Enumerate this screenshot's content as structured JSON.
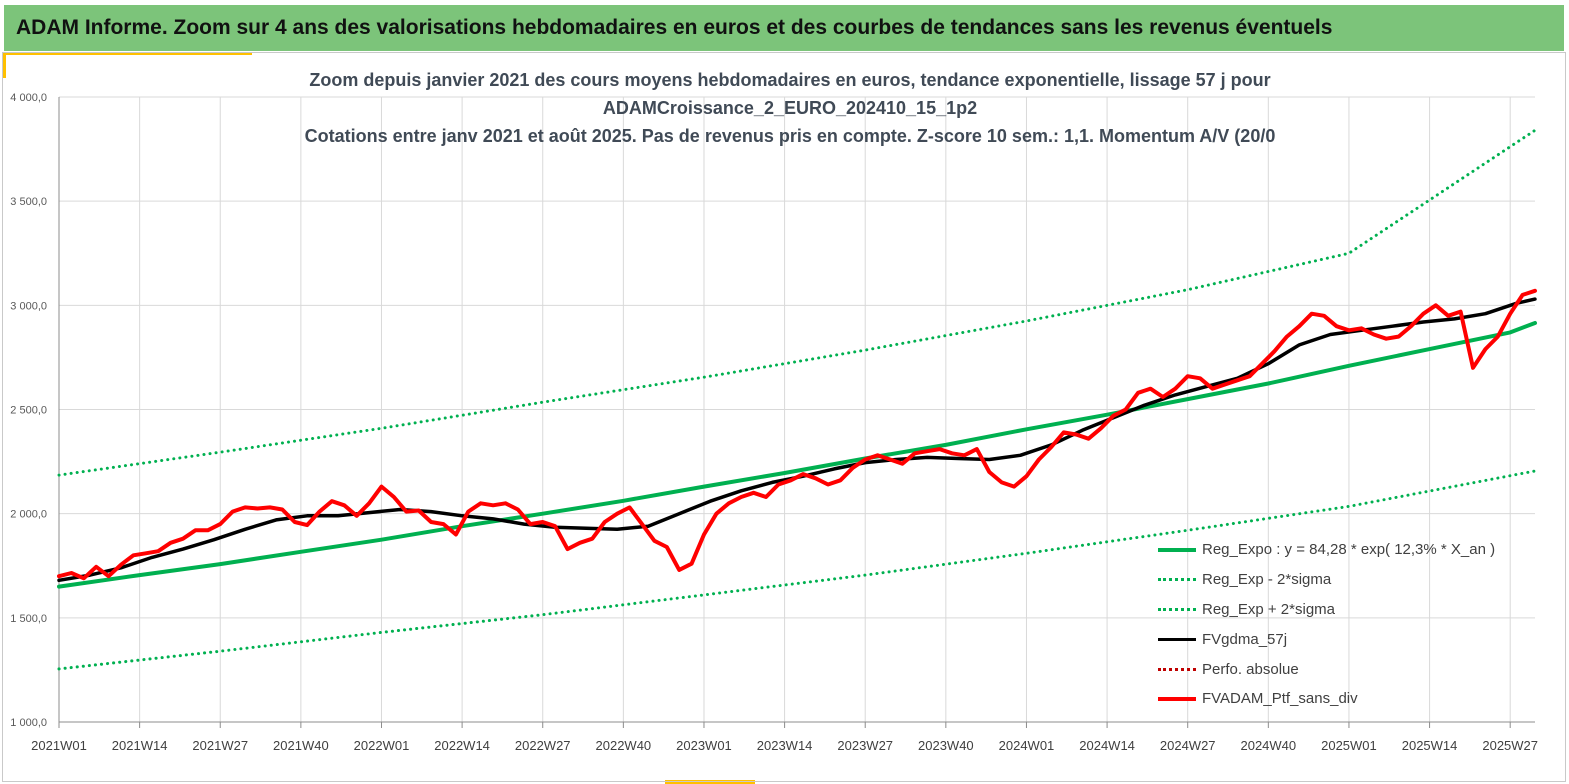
{
  "header": {
    "title": "ADAM Informe. Zoom sur 4 ans des valorisations hebdomadaires en euros et des courbes de tendances sans les revenus éventuels"
  },
  "chart_data": {
    "type": "line",
    "title_lines": [
      "Zoom depuis janvier 2021 des cours moyens hebdomadaires  en euros, tendance exponentielle, lissage 57 j pour",
      "ADAMCroissance_2_EURO_202410_15_1p2",
      "Cotations entre janv 2021 et août 2025. Pas de revenus pris en compte. Z-score 10 sem.: 1,1. Momentum A/V (20/0"
    ],
    "ylim": [
      1000,
      4000
    ],
    "yticks": [
      "1 000,0",
      "1 500,0",
      "2 000,0",
      "2 500,0",
      "3 000,0",
      "3 500,0",
      "4 000,0"
    ],
    "ytick_values": [
      1000,
      1500,
      2000,
      2500,
      3000,
      3500,
      4000
    ],
    "xticks": [
      "2021W01",
      "2021W14",
      "2021W27",
      "2021W40",
      "2022W01",
      "2022W14",
      "2022W27",
      "2022W40",
      "2023W01",
      "2023W14",
      "2023W27",
      "2023W40",
      "2024W01",
      "2024W14",
      "2024W27",
      "2024W40",
      "2025W01",
      "2025W14",
      "2025W27"
    ],
    "xtick_weeks": [
      0,
      13,
      26,
      39,
      52,
      65,
      78,
      91,
      104,
      117,
      130,
      143,
      156,
      169,
      182,
      195,
      208,
      221,
      234
    ],
    "week_count": 239,
    "grid": true,
    "legend_position": "bottom-right",
    "series": [
      {
        "name": "Reg_Expo : y = 84,28 * exp( 12,3% *  X_an )",
        "style": "solid-thick",
        "color": "#00b050",
        "points": [
          [
            0,
            1650
          ],
          [
            13,
            1705
          ],
          [
            26,
            1758
          ],
          [
            39,
            1817
          ],
          [
            52,
            1875
          ],
          [
            65,
            1940
          ],
          [
            78,
            2000
          ],
          [
            91,
            2062
          ],
          [
            104,
            2130
          ],
          [
            117,
            2195
          ],
          [
            130,
            2265
          ],
          [
            143,
            2330
          ],
          [
            156,
            2405
          ],
          [
            169,
            2475
          ],
          [
            182,
            2550
          ],
          [
            195,
            2625
          ],
          [
            208,
            2710
          ],
          [
            221,
            2790
          ],
          [
            234,
            2870
          ],
          [
            238,
            2915
          ]
        ]
      },
      {
        "name": "Reg_Exp - 2*sigma",
        "style": "dotted",
        "color": "#00b050",
        "points": [
          [
            0,
            1255
          ],
          [
            26,
            1340
          ],
          [
            52,
            1430
          ],
          [
            78,
            1515
          ],
          [
            104,
            1610
          ],
          [
            130,
            1705
          ],
          [
            156,
            1810
          ],
          [
            182,
            1920
          ],
          [
            208,
            2035
          ],
          [
            238,
            2205
          ]
        ]
      },
      {
        "name": "Reg_Exp + 2*sigma",
        "style": "dotted",
        "color": "#00b050",
        "points": [
          [
            0,
            2185
          ],
          [
            26,
            2295
          ],
          [
            52,
            2410
          ],
          [
            78,
            2535
          ],
          [
            104,
            2655
          ],
          [
            130,
            2785
          ],
          [
            156,
            2925
          ],
          [
            182,
            3075
          ],
          [
            208,
            3250
          ],
          [
            238,
            3840
          ]
        ]
      },
      {
        "name": "FVgdma_57j",
        "style": "solid",
        "color": "#000000",
        "points": [
          [
            0,
            1680
          ],
          [
            5,
            1705
          ],
          [
            10,
            1740
          ],
          [
            15,
            1790
          ],
          [
            20,
            1830
          ],
          [
            25,
            1875
          ],
          [
            30,
            1925
          ],
          [
            35,
            1970
          ],
          [
            40,
            1990
          ],
          [
            45,
            1990
          ],
          [
            50,
            2005
          ],
          [
            55,
            2020
          ],
          [
            60,
            2010
          ],
          [
            65,
            1990
          ],
          [
            70,
            1975
          ],
          [
            75,
            1950
          ],
          [
            80,
            1935
          ],
          [
            85,
            1930
          ],
          [
            90,
            1925
          ],
          [
            95,
            1940
          ],
          [
            100,
            2000
          ],
          [
            105,
            2060
          ],
          [
            110,
            2110
          ],
          [
            115,
            2150
          ],
          [
            120,
            2180
          ],
          [
            125,
            2215
          ],
          [
            130,
            2245
          ],
          [
            135,
            2260
          ],
          [
            140,
            2270
          ],
          [
            145,
            2265
          ],
          [
            150,
            2260
          ],
          [
            155,
            2280
          ],
          [
            160,
            2330
          ],
          [
            165,
            2400
          ],
          [
            170,
            2460
          ],
          [
            175,
            2520
          ],
          [
            180,
            2570
          ],
          [
            185,
            2610
          ],
          [
            190,
            2650
          ],
          [
            195,
            2720
          ],
          [
            200,
            2810
          ],
          [
            205,
            2860
          ],
          [
            210,
            2880
          ],
          [
            215,
            2900
          ],
          [
            220,
            2920
          ],
          [
            225,
            2935
          ],
          [
            230,
            2960
          ],
          [
            235,
            3010
          ],
          [
            238,
            3030
          ]
        ]
      },
      {
        "name": "Perfo. absolue",
        "style": "dotted",
        "color": "#c00000",
        "points": []
      },
      {
        "name": "FVADAM_Ptf_sans_div",
        "style": "solid-thick",
        "color": "#ff0000",
        "points": [
          [
            0,
            1700
          ],
          [
            2,
            1715
          ],
          [
            4,
            1690
          ],
          [
            6,
            1745
          ],
          [
            8,
            1700
          ],
          [
            10,
            1755
          ],
          [
            12,
            1800
          ],
          [
            14,
            1810
          ],
          [
            16,
            1820
          ],
          [
            18,
            1860
          ],
          [
            20,
            1880
          ],
          [
            22,
            1920
          ],
          [
            24,
            1920
          ],
          [
            26,
            1950
          ],
          [
            28,
            2010
          ],
          [
            30,
            2030
          ],
          [
            32,
            2025
          ],
          [
            34,
            2030
          ],
          [
            36,
            2020
          ],
          [
            38,
            1960
          ],
          [
            40,
            1945
          ],
          [
            42,
            2010
          ],
          [
            44,
            2060
          ],
          [
            46,
            2040
          ],
          [
            48,
            1990
          ],
          [
            50,
            2050
          ],
          [
            52,
            2130
          ],
          [
            54,
            2080
          ],
          [
            56,
            2010
          ],
          [
            58,
            2015
          ],
          [
            60,
            1960
          ],
          [
            62,
            1950
          ],
          [
            64,
            1900
          ],
          [
            66,
            2010
          ],
          [
            68,
            2050
          ],
          [
            70,
            2040
          ],
          [
            72,
            2050
          ],
          [
            74,
            2020
          ],
          [
            76,
            1950
          ],
          [
            78,
            1960
          ],
          [
            80,
            1940
          ],
          [
            82,
            1830
          ],
          [
            84,
            1860
          ],
          [
            86,
            1880
          ],
          [
            88,
            1960
          ],
          [
            90,
            2000
          ],
          [
            92,
            2030
          ],
          [
            94,
            1950
          ],
          [
            96,
            1870
          ],
          [
            98,
            1840
          ],
          [
            100,
            1730
          ],
          [
            102,
            1760
          ],
          [
            104,
            1900
          ],
          [
            106,
            2000
          ],
          [
            108,
            2050
          ],
          [
            110,
            2080
          ],
          [
            112,
            2100
          ],
          [
            114,
            2080
          ],
          [
            116,
            2140
          ],
          [
            118,
            2160
          ],
          [
            120,
            2190
          ],
          [
            122,
            2170
          ],
          [
            124,
            2140
          ],
          [
            126,
            2160
          ],
          [
            128,
            2220
          ],
          [
            130,
            2260
          ],
          [
            132,
            2280
          ],
          [
            134,
            2260
          ],
          [
            136,
            2240
          ],
          [
            138,
            2290
          ],
          [
            140,
            2300
          ],
          [
            142,
            2310
          ],
          [
            144,
            2290
          ],
          [
            146,
            2280
          ],
          [
            148,
            2310
          ],
          [
            150,
            2200
          ],
          [
            152,
            2150
          ],
          [
            154,
            2130
          ],
          [
            156,
            2180
          ],
          [
            158,
            2260
          ],
          [
            160,
            2320
          ],
          [
            162,
            2390
          ],
          [
            164,
            2380
          ],
          [
            166,
            2360
          ],
          [
            168,
            2410
          ],
          [
            170,
            2470
          ],
          [
            172,
            2500
          ],
          [
            174,
            2580
          ],
          [
            176,
            2600
          ],
          [
            178,
            2560
          ],
          [
            180,
            2600
          ],
          [
            182,
            2660
          ],
          [
            184,
            2650
          ],
          [
            186,
            2600
          ],
          [
            188,
            2620
          ],
          [
            190,
            2640
          ],
          [
            192,
            2660
          ],
          [
            194,
            2720
          ],
          [
            196,
            2780
          ],
          [
            198,
            2850
          ],
          [
            200,
            2900
          ],
          [
            202,
            2960
          ],
          [
            204,
            2950
          ],
          [
            206,
            2900
          ],
          [
            208,
            2880
          ],
          [
            210,
            2890
          ],
          [
            212,
            2860
          ],
          [
            214,
            2840
          ],
          [
            216,
            2850
          ],
          [
            218,
            2900
          ],
          [
            220,
            2960
          ],
          [
            222,
            3000
          ],
          [
            224,
            2950
          ],
          [
            226,
            2970
          ],
          [
            228,
            2700
          ],
          [
            230,
            2790
          ],
          [
            232,
            2850
          ],
          [
            234,
            2960
          ],
          [
            236,
            3050
          ],
          [
            238,
            3070
          ]
        ]
      }
    ]
  }
}
